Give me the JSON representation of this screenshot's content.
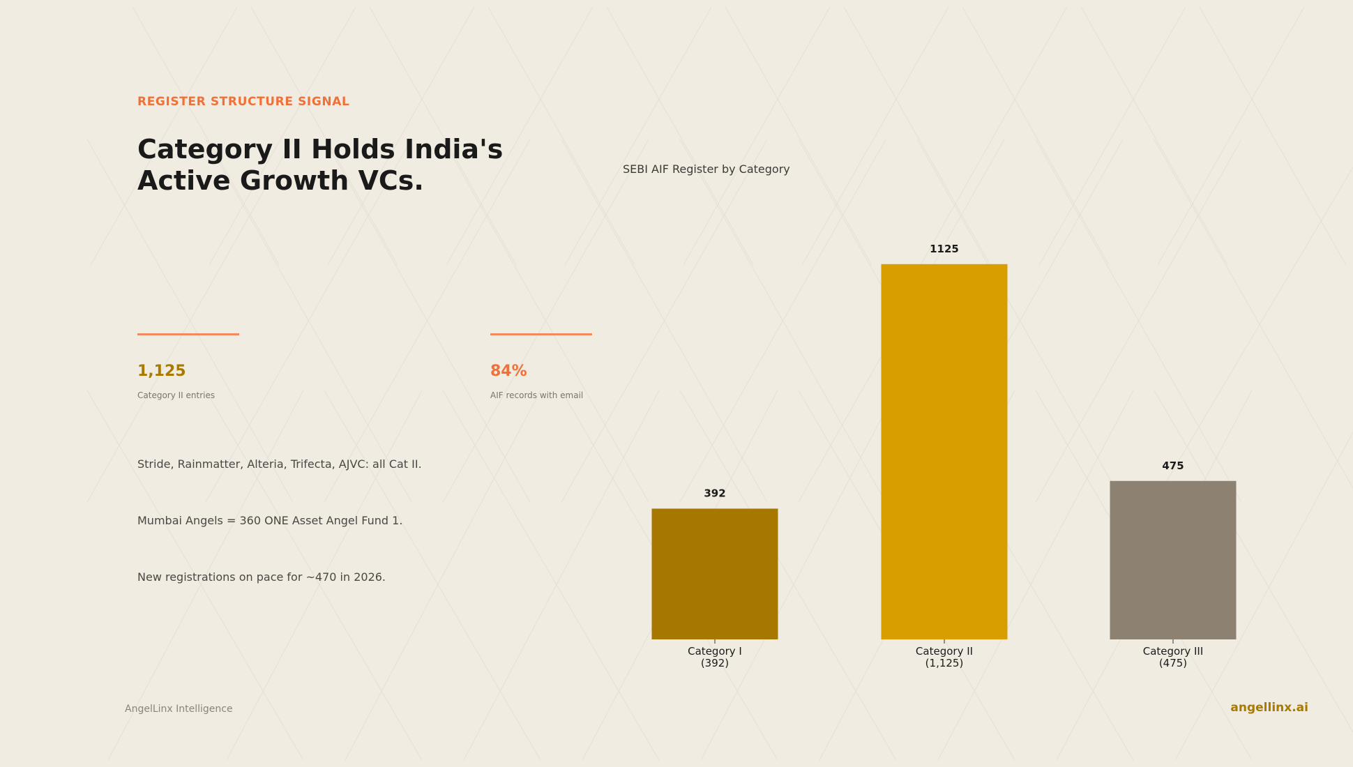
{
  "eyebrow": "REGISTER STRUCTURE SIGNAL",
  "headline": {
    "line1": "Category II Holds India's",
    "line2": "Active Growth VCs."
  },
  "stats": [
    {
      "value": "1,125",
      "label": "Category II entries",
      "color": "#a87a00"
    },
    {
      "value": "84%",
      "label": "AIF records with email",
      "color": "#f07038"
    }
  ],
  "notes": [
    "Stride, Rainmatter, Alteria, Trifecta, AJVC: all Cat II.",
    "Mumbai Angels = 360 ONE Asset Angel Fund 1.",
    "New registrations on pace for ~470 in 2026."
  ],
  "footer": {
    "left": "AngelLinx Intelligence",
    "right": "angellinx.ai"
  },
  "colors": {
    "accent": "#f07038",
    "gold": "#a87a00"
  },
  "chart_data": {
    "type": "bar",
    "title": "SEBI AIF Register by Category",
    "categories": [
      "Category I\n(392)",
      "Category II\n(1,125)",
      "Category III\n(475)"
    ],
    "values": [
      392,
      1125,
      475
    ],
    "value_labels": [
      "392",
      "1125",
      "475"
    ],
    "colors": [
      "#a67800",
      "#d89e00",
      "#8d8272"
    ],
    "xlabel": "",
    "ylabel": "",
    "ylim": [
      0,
      1181
    ],
    "grid": false,
    "legend": "none"
  }
}
